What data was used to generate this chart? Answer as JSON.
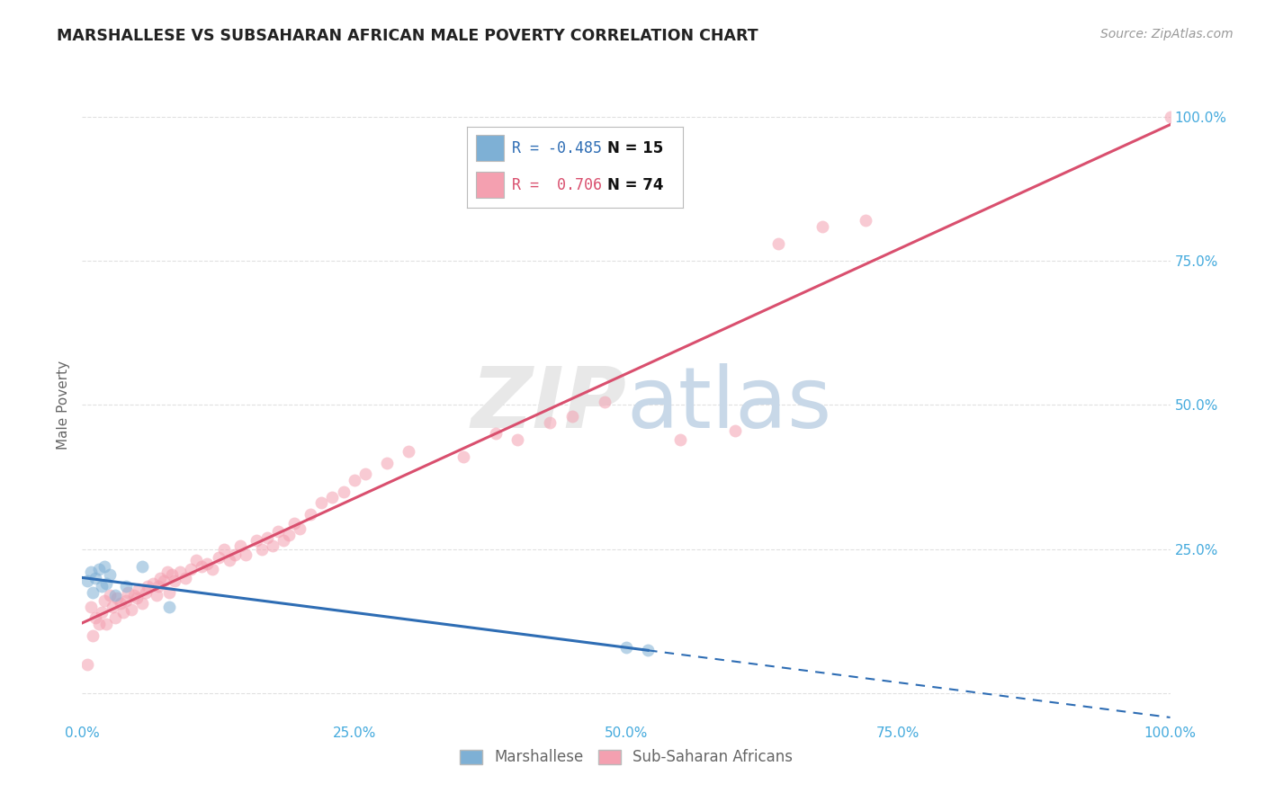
{
  "title": "MARSHALLESE VS SUBSAHARAN AFRICAN MALE POVERTY CORRELATION CHART",
  "source": "Source: ZipAtlas.com",
  "ylabel": "Male Poverty",
  "xlim": [
    0,
    1.0
  ],
  "ylim": [
    -0.05,
    1.05
  ],
  "xticks": [
    0.0,
    0.25,
    0.5,
    0.75,
    1.0
  ],
  "xticklabels": [
    "0.0%",
    "25.0%",
    "50.0%",
    "75.0%",
    "100.0%"
  ],
  "right_yticklabels": [
    "",
    "25.0%",
    "50.0%",
    "75.0%",
    "100.0%"
  ],
  "marshallese_R": -0.485,
  "marshallese_N": 15,
  "subsaharan_R": 0.706,
  "subsaharan_N": 74,
  "marshallese_color": "#7EB0D5",
  "subsaharan_color": "#F4A0B0",
  "marshallese_line_color": "#2E6DB4",
  "subsaharan_line_color": "#D94F6E",
  "background_color": "#FFFFFF",
  "grid_color": "#DDDDDD",
  "title_color": "#222222",
  "source_color": "#999999",
  "axis_label_color": "#666666",
  "tick_color": "#44AADD",
  "marker_size": 100,
  "marker_alpha": 0.55,
  "marshallese_x": [
    0.005,
    0.008,
    0.01,
    0.012,
    0.015,
    0.018,
    0.02,
    0.022,
    0.025,
    0.03,
    0.04,
    0.055,
    0.08,
    0.5,
    0.52
  ],
  "marshallese_y": [
    0.195,
    0.21,
    0.175,
    0.2,
    0.215,
    0.185,
    0.22,
    0.19,
    0.205,
    0.17,
    0.185,
    0.22,
    0.15,
    0.08,
    0.075
  ],
  "subsaharan_x": [
    0.005,
    0.008,
    0.01,
    0.012,
    0.015,
    0.018,
    0.02,
    0.022,
    0.025,
    0.028,
    0.03,
    0.032,
    0.035,
    0.038,
    0.04,
    0.042,
    0.045,
    0.048,
    0.05,
    0.052,
    0.055,
    0.058,
    0.06,
    0.065,
    0.068,
    0.07,
    0.072,
    0.075,
    0.078,
    0.08,
    0.082,
    0.085,
    0.09,
    0.095,
    0.1,
    0.105,
    0.11,
    0.115,
    0.12,
    0.125,
    0.13,
    0.135,
    0.14,
    0.145,
    0.15,
    0.16,
    0.165,
    0.17,
    0.175,
    0.18,
    0.185,
    0.19,
    0.195,
    0.2,
    0.21,
    0.22,
    0.23,
    0.24,
    0.25,
    0.26,
    0.28,
    0.3,
    0.35,
    0.38,
    0.4,
    0.43,
    0.45,
    0.48,
    0.55,
    0.6,
    0.64,
    0.68,
    0.72,
    1.0
  ],
  "subsaharan_y": [
    0.05,
    0.15,
    0.1,
    0.13,
    0.12,
    0.14,
    0.16,
    0.12,
    0.17,
    0.15,
    0.13,
    0.165,
    0.155,
    0.14,
    0.16,
    0.175,
    0.145,
    0.17,
    0.165,
    0.18,
    0.155,
    0.175,
    0.185,
    0.19,
    0.17,
    0.185,
    0.2,
    0.195,
    0.21,
    0.175,
    0.205,
    0.195,
    0.21,
    0.2,
    0.215,
    0.23,
    0.22,
    0.225,
    0.215,
    0.235,
    0.25,
    0.23,
    0.24,
    0.255,
    0.24,
    0.265,
    0.25,
    0.27,
    0.255,
    0.28,
    0.265,
    0.275,
    0.295,
    0.285,
    0.31,
    0.33,
    0.34,
    0.35,
    0.37,
    0.38,
    0.4,
    0.42,
    0.41,
    0.45,
    0.44,
    0.47,
    0.48,
    0.505,
    0.44,
    0.455,
    0.78,
    0.81,
    0.82,
    1.0
  ]
}
